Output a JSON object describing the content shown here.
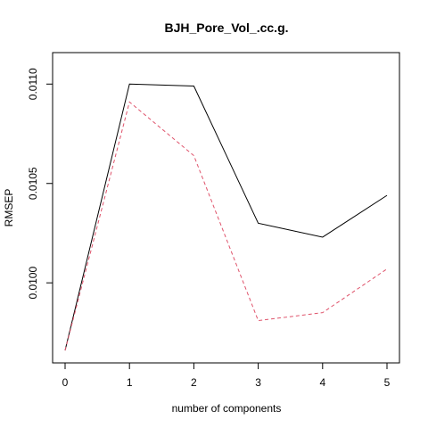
{
  "chart_data": {
    "type": "line",
    "title": "BJH_Pore_Vol_.cc.g.",
    "xlabel": "number of components",
    "ylabel": "RMSEP",
    "x": [
      0,
      1,
      2,
      3,
      4,
      5
    ],
    "xticks": [
      "0",
      "1",
      "2",
      "3",
      "4",
      "5"
    ],
    "yticks": [
      {
        "value": 0.01,
        "label": "0.0100"
      },
      {
        "value": 0.0105,
        "label": "0.0105"
      },
      {
        "value": 0.011,
        "label": "0.0110"
      }
    ],
    "xlim": [
      0,
      5
    ],
    "ylim": [
      0.00966,
      0.0111
    ],
    "grid": false,
    "legend": "none",
    "series": [
      {
        "values": [
          0.00966,
          0.011,
          0.01099,
          0.0103,
          0.01023,
          0.01044
        ],
        "color": "#000000",
        "style": "solid"
      },
      {
        "values": [
          0.00966,
          0.01091,
          0.01064,
          0.00981,
          0.00985,
          0.01007
        ],
        "color": "#DF536B",
        "style": "dashed"
      }
    ]
  }
}
